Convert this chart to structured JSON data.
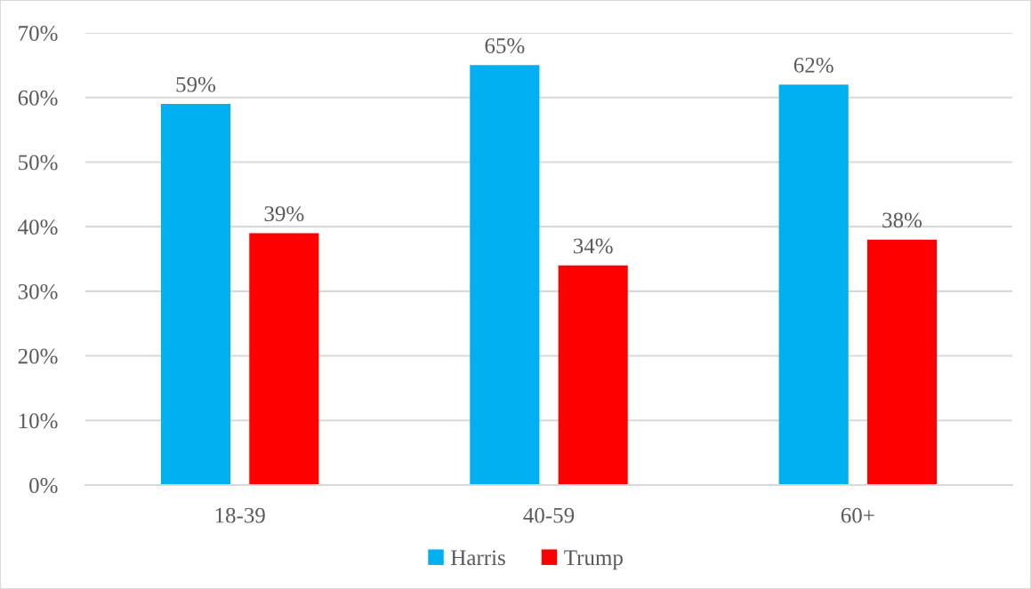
{
  "chart_data": {
    "type": "bar",
    "categories": [
      "18-39",
      "40-59",
      "60+"
    ],
    "series": [
      {
        "name": "Harris",
        "color": "#00b0f0",
        "values": [
          59,
          65,
          62
        ],
        "value_labels": [
          "59%",
          "65%",
          "62%"
        ]
      },
      {
        "name": "Trump",
        "color": "#ff0000",
        "values": [
          39,
          34,
          38
        ],
        "value_labels": [
          "39%",
          "34%",
          "38%"
        ]
      }
    ],
    "ylim": [
      0,
      70
    ],
    "yticks": [
      {
        "value": 0,
        "label": "0%"
      },
      {
        "value": 10,
        "label": "10%"
      },
      {
        "value": 20,
        "label": "20%"
      },
      {
        "value": 30,
        "label": "30%"
      },
      {
        "value": 40,
        "label": "40%"
      },
      {
        "value": 50,
        "label": "50%"
      },
      {
        "value": 60,
        "label": "60%"
      },
      {
        "value": 70,
        "label": "70%"
      }
    ],
    "grid": "y",
    "legend": "bottom"
  }
}
